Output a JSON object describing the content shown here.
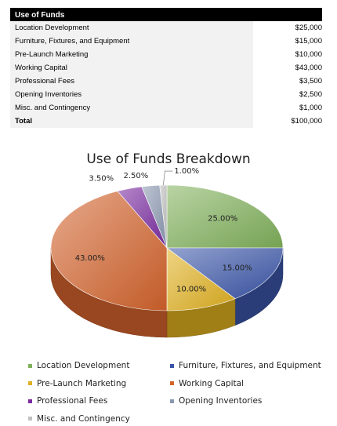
{
  "table": {
    "header": "Use of Funds",
    "rows": [
      {
        "label": "Location Development",
        "amount": "$25,000"
      },
      {
        "label": "Furniture, Fixtures, and Equipment",
        "amount": "$15,000"
      },
      {
        "label": "Pre-Launch Marketing",
        "amount": "$10,000"
      },
      {
        "label": "Working Capital",
        "amount": "$43,000"
      },
      {
        "label": "Professional Fees",
        "amount": "$3,500"
      },
      {
        "label": "Opening Inventories",
        "amount": "$2,500"
      },
      {
        "label": "Misc. and Contingency",
        "amount": "$1,000"
      }
    ],
    "total_label": "Total",
    "total_amount": "$100,000"
  },
  "chart_data": {
    "type": "pie",
    "title": "Use of Funds Breakdown",
    "categories": [
      "Location Development",
      "Furniture, Fixtures, and Equipment",
      "Pre-Launch Marketing",
      "Working Capital",
      "Professional Fees",
      "Opening Inventories",
      "Misc. and Contingency"
    ],
    "values": [
      25.0,
      15.0,
      10.0,
      43.0,
      3.5,
      2.5,
      1.0
    ],
    "data_labels": [
      "25.00%",
      "15.00%",
      "10.00%",
      "43.00%",
      "3.50%",
      "2.50%",
      "1.00%"
    ],
    "colors": [
      "#7fb05a",
      "#3a55a8",
      "#e0b020",
      "#d3632c",
      "#7a2aa0",
      "#8a98b0",
      "#c0c0c0"
    ],
    "legend_position": "bottom",
    "style": "3d"
  }
}
